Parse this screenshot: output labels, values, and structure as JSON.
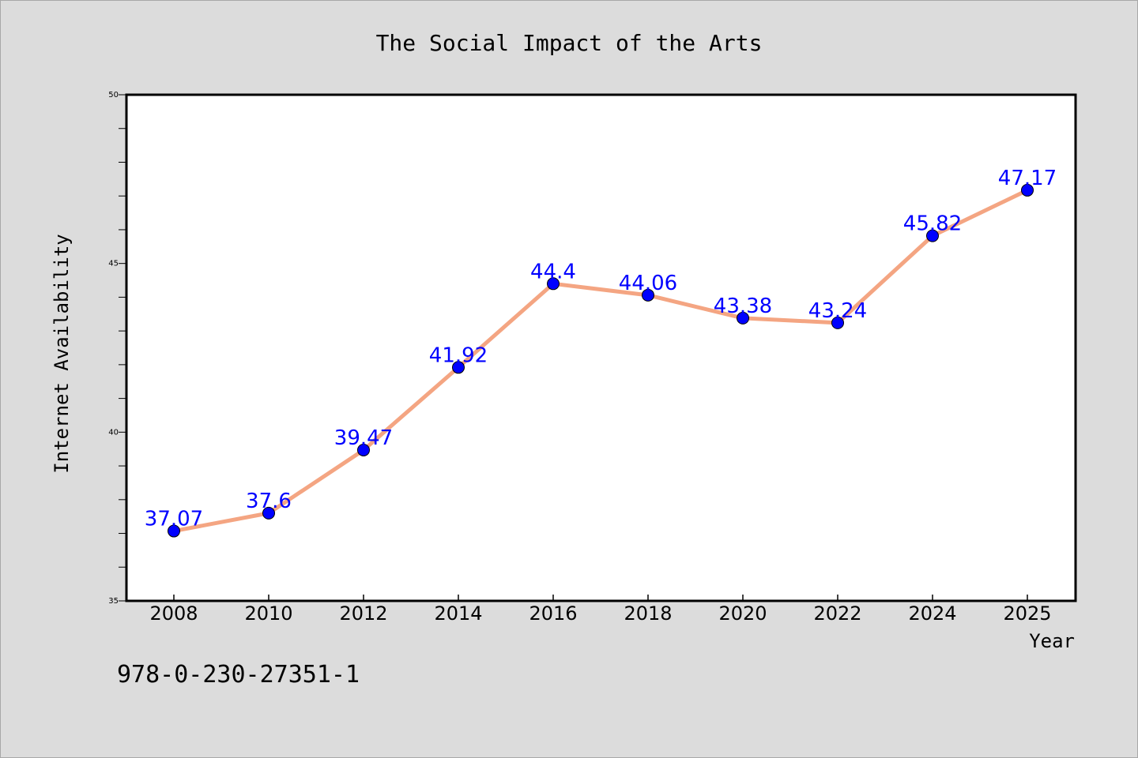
{
  "chart_data": {
    "type": "line",
    "title": "The Social Impact of the Arts",
    "xlabel": "Year",
    "ylabel": "Internet Availability",
    "categories": [
      "2008",
      "2010",
      "2012",
      "2014",
      "2016",
      "2018",
      "2020",
      "2022",
      "2024",
      "2025"
    ],
    "series": [
      {
        "values": [
          37.07,
          37.6,
          39.47,
          41.92,
          44.4,
          44.06,
          43.38,
          43.24,
          45.82,
          47.17
        ],
        "line_color": "#f4a582",
        "marker_color": "#0000ff"
      }
    ],
    "data_labels": [
      "37.07",
      "37.6",
      "39.47",
      "41.92",
      "44.4",
      "44.06",
      "43.38",
      "43.24",
      "45.82",
      "47.17"
    ],
    "data_label_color": "#0000ff",
    "ylim": [
      35,
      50
    ],
    "yticks": [
      "35",
      "40",
      "45",
      "50"
    ],
    "grid": false,
    "legend": false
  },
  "footer": {
    "isbn": "978-0-230-27351-1"
  }
}
